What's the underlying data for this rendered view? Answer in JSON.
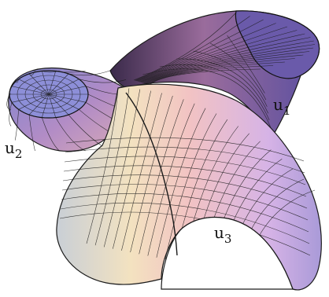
{
  "figure": {
    "labels": [
      {
        "name": "u",
        "sub": "1"
      },
      {
        "name": "u",
        "sub": "2"
      },
      {
        "name": "u",
        "sub": "3"
      }
    ]
  }
}
